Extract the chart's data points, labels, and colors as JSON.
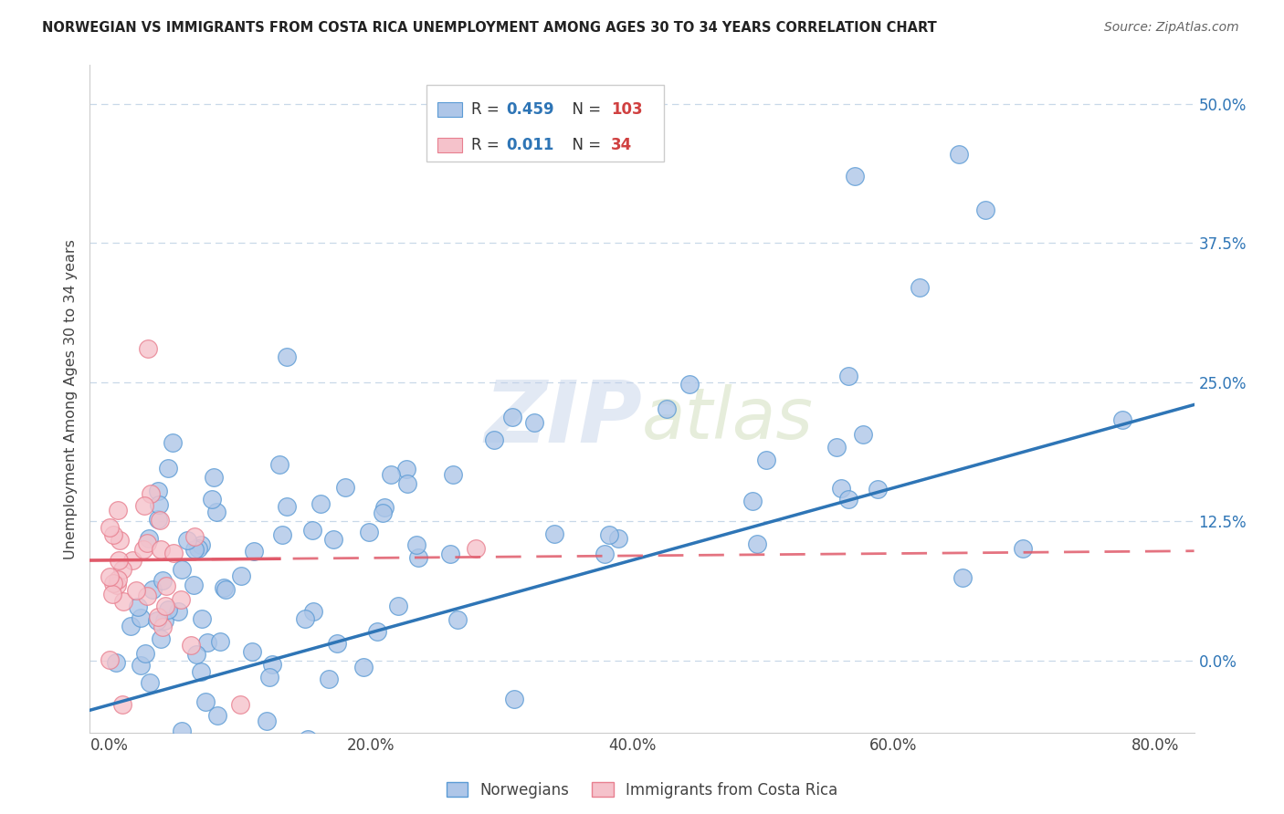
{
  "title": "NORWEGIAN VS IMMIGRANTS FROM COSTA RICA UNEMPLOYMENT AMONG AGES 30 TO 34 YEARS CORRELATION CHART",
  "source": "Source: ZipAtlas.com",
  "xlabel_ticks": [
    "0.0%",
    "20.0%",
    "40.0%",
    "60.0%",
    "80.0%"
  ],
  "xlabel_vals": [
    0.0,
    0.2,
    0.4,
    0.6,
    0.8
  ],
  "ylabel_ticks": [
    "0.0%",
    "12.5%",
    "25.0%",
    "37.5%",
    "50.0%"
  ],
  "ylabel_vals": [
    0.0,
    0.125,
    0.25,
    0.375,
    0.5
  ],
  "ylabel_label": "Unemployment Among Ages 30 to 34 years",
  "norwegian_R": 0.459,
  "norwegian_N": 103,
  "costarica_R": 0.011,
  "costarica_N": 34,
  "norwegian_color": "#aec6e8",
  "norwegian_edge_color": "#5b9bd5",
  "norwegian_line_color": "#2e75b6",
  "costarica_color": "#f5c2cb",
  "costarica_edge_color": "#e87f8f",
  "costarica_line_color": "#e05a6a",
  "r_n_color": "#2e75b6",
  "n_val_color": "#e05050",
  "legend_label_1": "Norwegians",
  "legend_label_2": "Immigrants from Costa Rica",
  "watermark_zip": "ZIP",
  "watermark_atlas": "atlas",
  "background_color": "#ffffff",
  "grid_color": "#c8d8e8",
  "xlim": [
    -0.015,
    0.83
  ],
  "ylim": [
    -0.065,
    0.535
  ]
}
